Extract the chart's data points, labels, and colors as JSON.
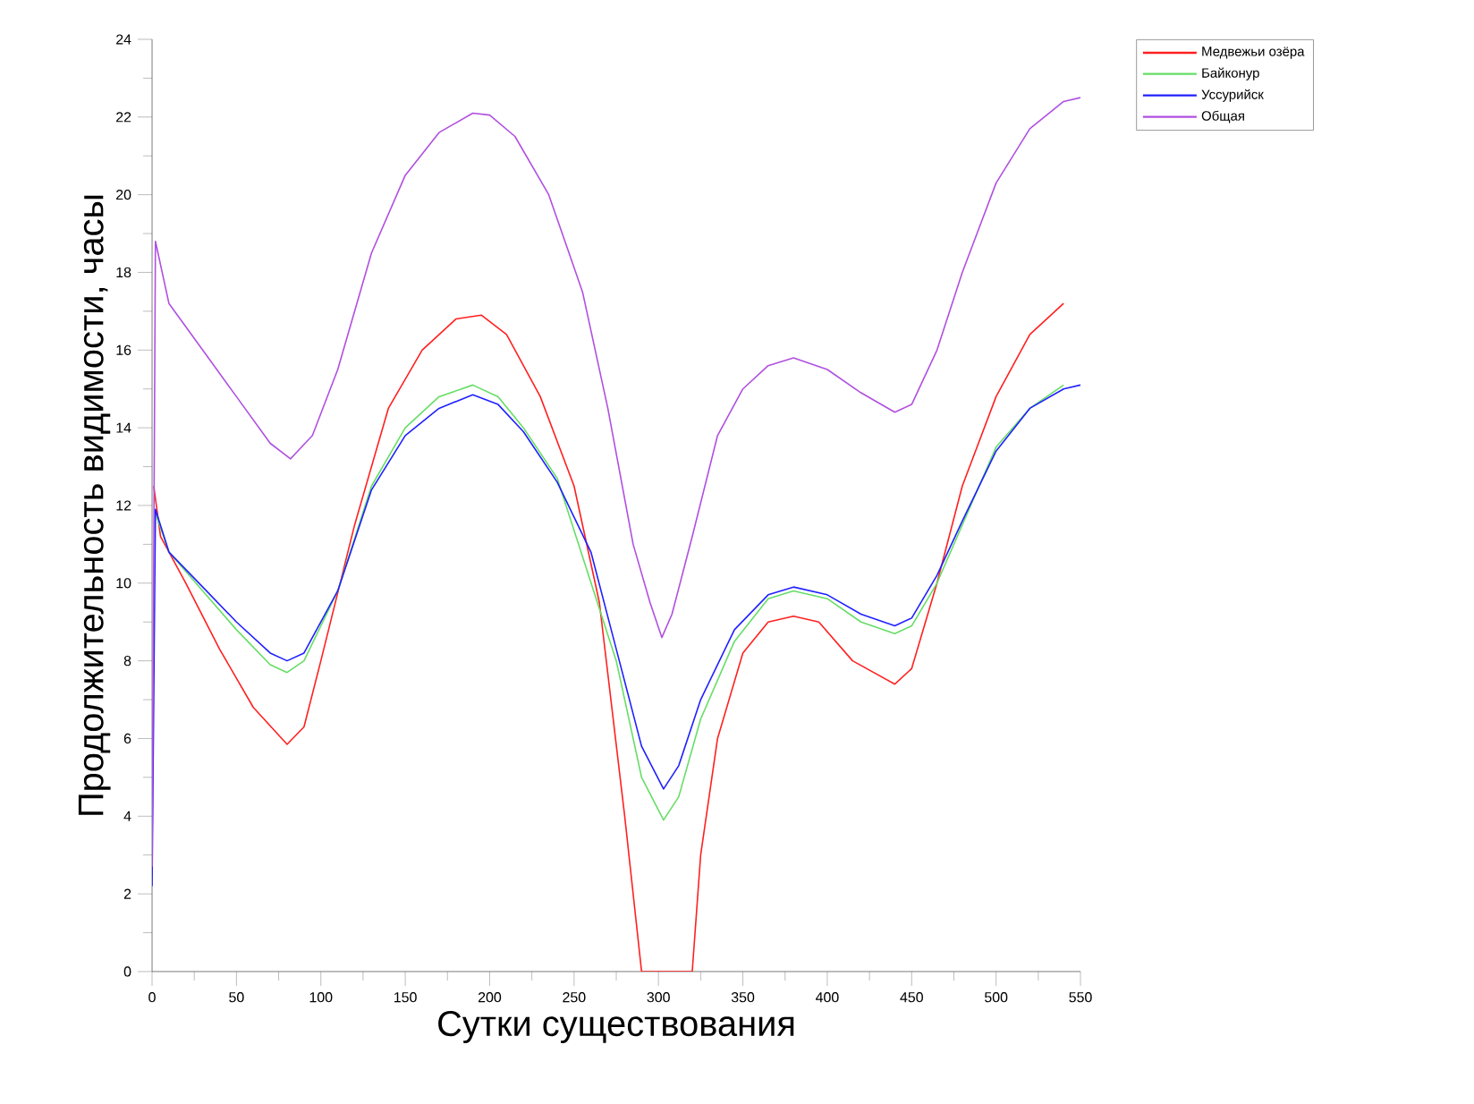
{
  "chart_data": {
    "type": "line",
    "xlabel": "Сутки существования",
    "ylabel": "Продолжительность видимости, часы",
    "xlim": [
      0,
      550
    ],
    "ylim": [
      0,
      24
    ],
    "xticks": [
      0,
      50,
      100,
      150,
      200,
      250,
      300,
      350,
      400,
      450,
      500,
      550
    ],
    "yticks": [
      0,
      2,
      4,
      6,
      8,
      10,
      12,
      14,
      16,
      18,
      20,
      22,
      24
    ],
    "grid": false,
    "legend": "top right",
    "marker": "none",
    "line_style": "solid",
    "series": [
      {
        "name": "Медвежьи озёра",
        "color": "#ff2020",
        "x": [
          1,
          5,
          20,
          40,
          60,
          80,
          90,
          100,
          120,
          140,
          160,
          180,
          195,
          210,
          230,
          250,
          265,
          280,
          290,
          300,
          320,
          325,
          335,
          350,
          365,
          380,
          395,
          415,
          440,
          450,
          465,
          480,
          500,
          520,
          540
        ],
        "values": [
          12.5,
          11.2,
          10.0,
          8.3,
          6.8,
          5.85,
          6.3,
          8.0,
          11.5,
          14.5,
          16.0,
          16.8,
          16.9,
          16.4,
          14.8,
          12.5,
          9.5,
          4.0,
          0,
          0,
          0,
          3.0,
          6.0,
          8.2,
          9.0,
          9.15,
          9.0,
          8.0,
          7.4,
          7.8,
          10.0,
          12.5,
          14.8,
          16.4,
          17.2
        ]
      },
      {
        "name": "Байконур",
        "color": "#66dd66",
        "x": [
          2,
          10,
          30,
          50,
          70,
          80,
          90,
          110,
          130,
          150,
          170,
          190,
          205,
          220,
          240,
          275,
          290,
          303,
          312,
          325,
          345,
          365,
          380,
          400,
          420,
          440,
          450,
          465,
          480,
          500,
          520,
          540
        ],
        "values": [
          11.8,
          10.8,
          9.8,
          8.8,
          7.9,
          7.7,
          8.0,
          9.8,
          12.5,
          14.0,
          14.8,
          15.1,
          14.8,
          14.0,
          12.7,
          8.0,
          5.0,
          3.9,
          4.5,
          6.5,
          8.5,
          9.6,
          9.8,
          9.6,
          9.0,
          8.7,
          8.9,
          10.0,
          11.5,
          13.5,
          14.5,
          15.1
        ]
      },
      {
        "name": "Уссурийск",
        "color": "#2020ff",
        "x": [
          0,
          2,
          10,
          30,
          50,
          70,
          80,
          90,
          110,
          130,
          150,
          170,
          190,
          205,
          220,
          240,
          260,
          275,
          290,
          303,
          312,
          325,
          345,
          365,
          380,
          400,
          420,
          440,
          450,
          465,
          480,
          500,
          520,
          540,
          550
        ],
        "values": [
          2.2,
          11.9,
          10.8,
          9.9,
          9.0,
          8.2,
          8.0,
          8.2,
          9.8,
          12.4,
          13.8,
          14.5,
          14.85,
          14.6,
          13.9,
          12.6,
          10.8,
          8.3,
          5.8,
          4.7,
          5.3,
          7.0,
          8.8,
          9.7,
          9.9,
          9.7,
          9.2,
          8.9,
          9.1,
          10.2,
          11.6,
          13.4,
          14.5,
          15.0,
          15.1
        ]
      },
      {
        "name": "Общая",
        "color": "#b050e0",
        "x": [
          0,
          2,
          10,
          30,
          50,
          70,
          82,
          95,
          110,
          130,
          150,
          170,
          190,
          200,
          215,
          235,
          255,
          270,
          285,
          295,
          302,
          308,
          320,
          335,
          350,
          365,
          380,
          400,
          420,
          440,
          450,
          465,
          480,
          500,
          520,
          540,
          550
        ],
        "values": [
          2.7,
          18.8,
          17.2,
          16.0,
          14.8,
          13.6,
          13.2,
          13.8,
          15.5,
          18.5,
          20.5,
          21.6,
          22.1,
          22.05,
          21.5,
          20.0,
          17.5,
          14.5,
          11.0,
          9.5,
          8.6,
          9.2,
          11.2,
          13.8,
          15.0,
          15.6,
          15.8,
          15.5,
          14.9,
          14.4,
          14.6,
          16.0,
          18.0,
          20.3,
          21.7,
          22.4,
          22.5
        ]
      }
    ]
  }
}
